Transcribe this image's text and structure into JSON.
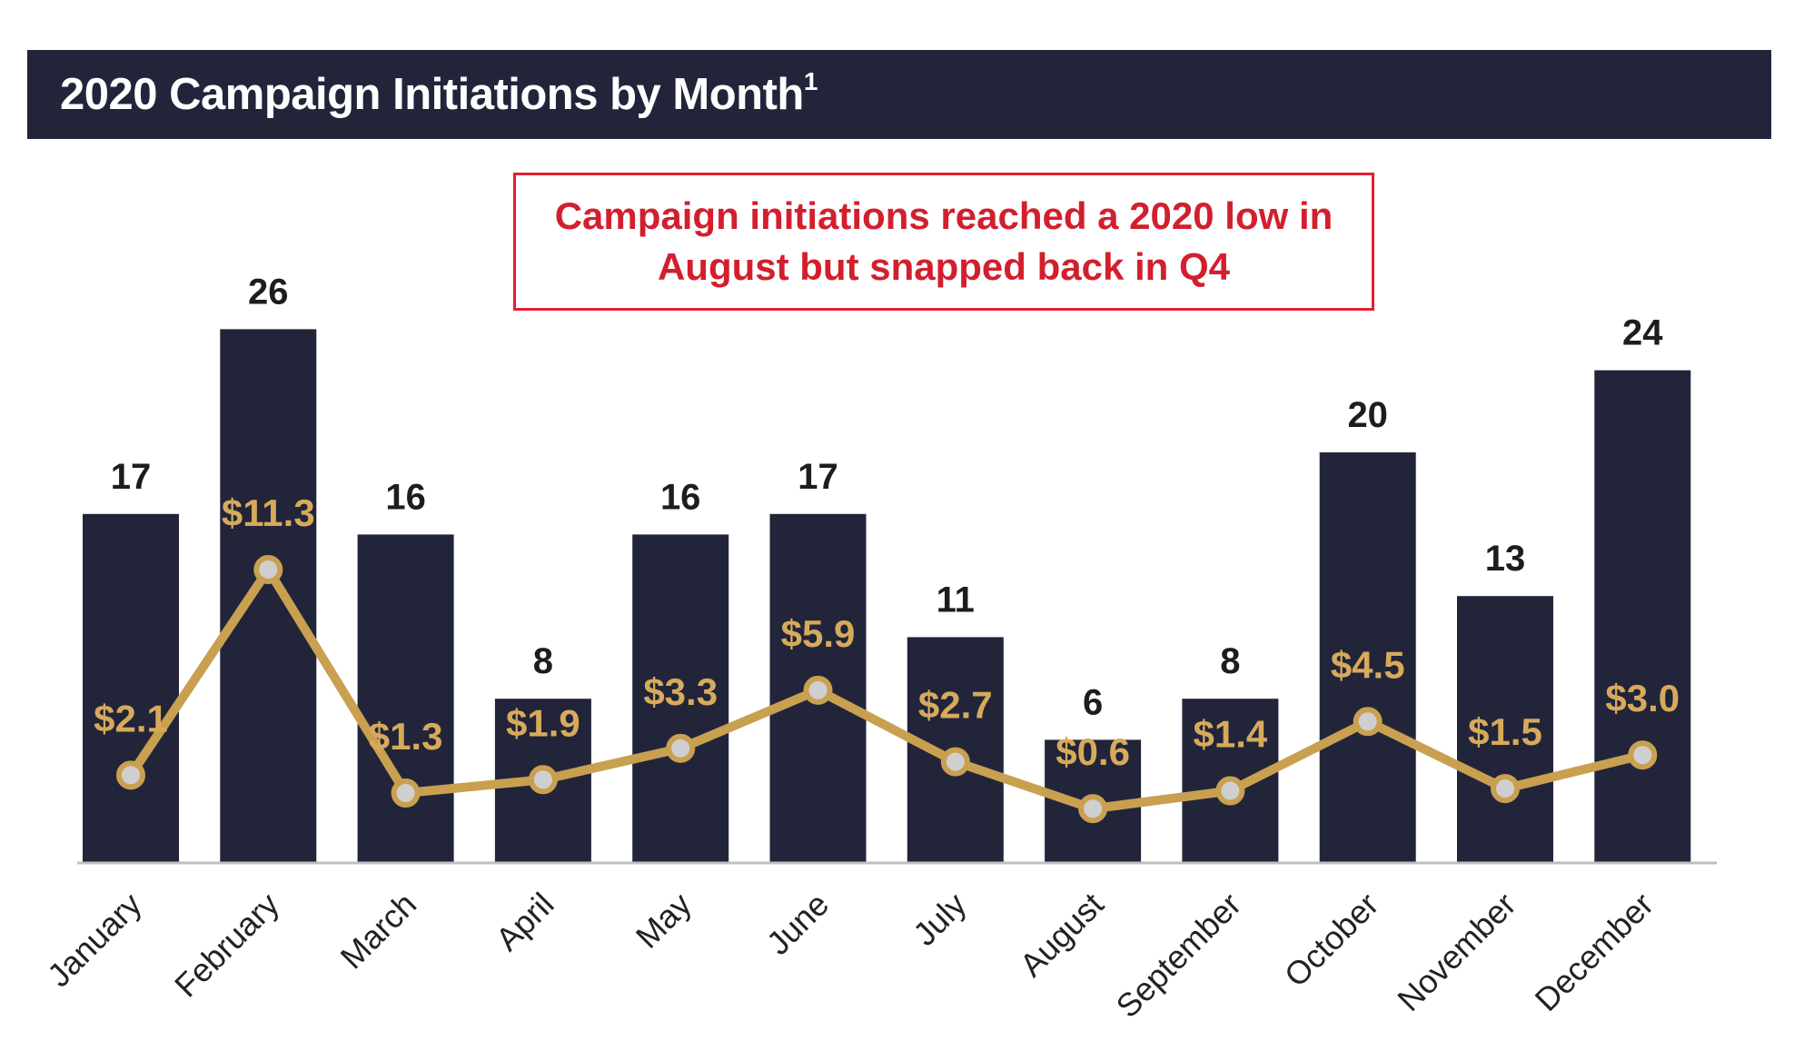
{
  "header": {
    "title": "2020 Campaign Initiations by Month",
    "title_superscript": "1"
  },
  "callout": {
    "line1": "Campaign initiations reached a 2020 low in",
    "line2": "August but snapped back in Q4"
  },
  "colors": {
    "bar": "#22253a",
    "line": "#c9a050",
    "callout_border": "#e0202f",
    "callout_text": "#d21f2e",
    "value_label": "#d7aa5b"
  },
  "chart_data": {
    "type": "bar",
    "categories": [
      "January",
      "February",
      "March",
      "April",
      "May",
      "June",
      "July",
      "August",
      "September",
      "October",
      "November",
      "December"
    ],
    "series": [
      {
        "type": "bar",
        "values": [
          17,
          26,
          16,
          8,
          16,
          17,
          11,
          6,
          8,
          20,
          13,
          24
        ],
        "labels": [
          "17",
          "26",
          "16",
          "8",
          "16",
          "17",
          "11",
          "6",
          "8",
          "20",
          "13",
          "24"
        ]
      },
      {
        "type": "line",
        "values": [
          2.1,
          11.3,
          1.3,
          1.9,
          3.3,
          5.9,
          2.7,
          0.6,
          1.4,
          4.5,
          1.5,
          3.0
        ],
        "labels": [
          "$2.1",
          "$11.3",
          "$1.3",
          "$1.9",
          "$3.3",
          "$5.9",
          "$2.7",
          "$0.6",
          "$1.4",
          "$4.5",
          "$1.5",
          "$3.0"
        ]
      }
    ],
    "title": "2020 Campaign Initiations by Month",
    "annotation": "Campaign initiations reached a 2020 low in August but snapped back in Q4",
    "xlabel": "",
    "ylabel": "",
    "grid": false,
    "legend": "none"
  }
}
